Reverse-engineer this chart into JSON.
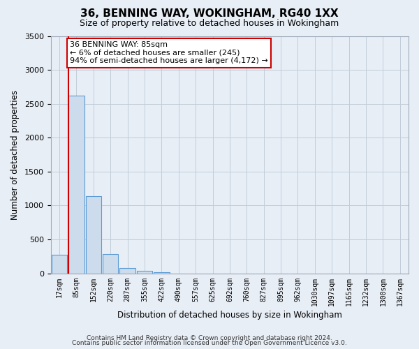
{
  "title": "36, BENNING WAY, WOKINGHAM, RG40 1XX",
  "subtitle": "Size of property relative to detached houses in Wokingham",
  "xlabel": "Distribution of detached houses by size in Wokingham",
  "ylabel": "Number of detached properties",
  "bar_labels": [
    "17sqm",
    "85sqm",
    "152sqm",
    "220sqm",
    "287sqm",
    "355sqm",
    "422sqm",
    "490sqm",
    "557sqm",
    "625sqm",
    "692sqm",
    "760sqm",
    "827sqm",
    "895sqm",
    "962sqm",
    "1030sqm",
    "1097sqm",
    "1165sqm",
    "1232sqm",
    "1300sqm",
    "1367sqm"
  ],
  "bar_values": [
    275,
    2620,
    1140,
    280,
    75,
    35,
    15,
    0,
    0,
    0,
    0,
    0,
    0,
    0,
    0,
    0,
    0,
    0,
    0,
    0,
    0
  ],
  "bar_color": "#ccdcec",
  "bar_edge_color": "#5b9bd5",
  "highlight_bar_idx": 1,
  "highlight_line_color": "#cc0000",
  "annotation_line1": "36 BENNING WAY: 85sqm",
  "annotation_line2": "← 6% of detached houses are smaller (245)",
  "annotation_line3": "94% of semi-detached houses are larger (4,172) →",
  "annotation_box_color": "#ffffff",
  "annotation_box_edge": "#cc0000",
  "ylim": [
    0,
    3500
  ],
  "yticks": [
    0,
    500,
    1000,
    1500,
    2000,
    2500,
    3000,
    3500
  ],
  "grid_color": "#c0ccd8",
  "bg_color": "#e8eef6",
  "footer1": "Contains HM Land Registry data © Crown copyright and database right 2024.",
  "footer2": "Contains public sector information licensed under the Open Government Licence v3.0."
}
